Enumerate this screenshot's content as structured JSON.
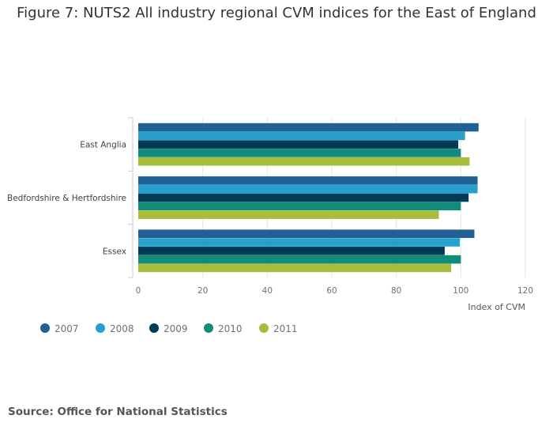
{
  "title": "Figure 7: NUTS2 All industry regional CVM indices for the East of England",
  "source": "Source: Office for National Statistics",
  "chart_data": {
    "type": "bar",
    "orientation": "horizontal",
    "title": "Figure 7: NUTS2 All industry regional CVM indices for the East of England",
    "xlabel": "Index of CVM",
    "ylabel": "",
    "xlim": [
      0,
      120
    ],
    "x_ticks": [
      0,
      20,
      40,
      60,
      80,
      100,
      120
    ],
    "grid": true,
    "legend_position": "bottom-left",
    "categories": [
      "East Anglia",
      "Bedfordshire & Hertfordshire",
      "Essex"
    ],
    "series": [
      {
        "name": "2007",
        "color": "#206095",
        "values": [
          105.5,
          105.2,
          104.2
        ]
      },
      {
        "name": "2008",
        "color": "#27A0CC",
        "values": [
          101.3,
          105.2,
          99.7
        ]
      },
      {
        "name": "2009",
        "color": "#003C57",
        "values": [
          99.2,
          102.4,
          95.0
        ]
      },
      {
        "name": "2010",
        "color": "#118C7B",
        "values": [
          100.0,
          100.0,
          100.0
        ]
      },
      {
        "name": "2011",
        "color": "#A8BD3A",
        "values": [
          102.7,
          93.2,
          97.0
        ]
      }
    ]
  }
}
